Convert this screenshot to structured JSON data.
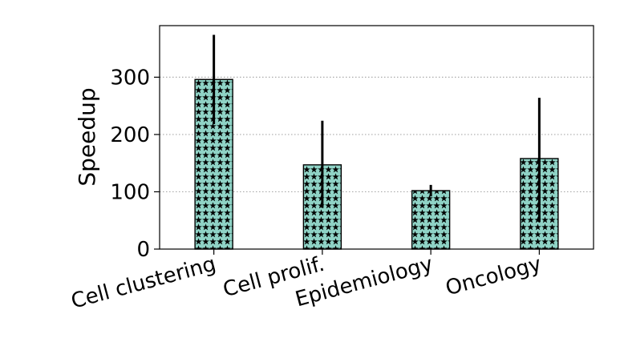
{
  "chart_data": {
    "type": "bar",
    "title": "",
    "xlabel": "",
    "ylabel": "Speedup",
    "categories": [
      "Cell clustering",
      "Cell prolif.",
      "Epidemiology",
      "Oncology"
    ],
    "values": [
      296,
      147,
      102,
      158
    ],
    "error_low": [
      218,
      72,
      92,
      47
    ],
    "error_high": [
      374,
      224,
      112,
      264
    ],
    "ylim": [
      0,
      390
    ],
    "yticks": [
      0,
      100,
      200,
      300
    ],
    "grid": "y-dotted",
    "legend": "none",
    "colors": {
      "bar_fill": "#8fd3c6",
      "bar_pattern": "#000000",
      "error_bar": "#000000",
      "grid": "#aaaaaa"
    }
  }
}
